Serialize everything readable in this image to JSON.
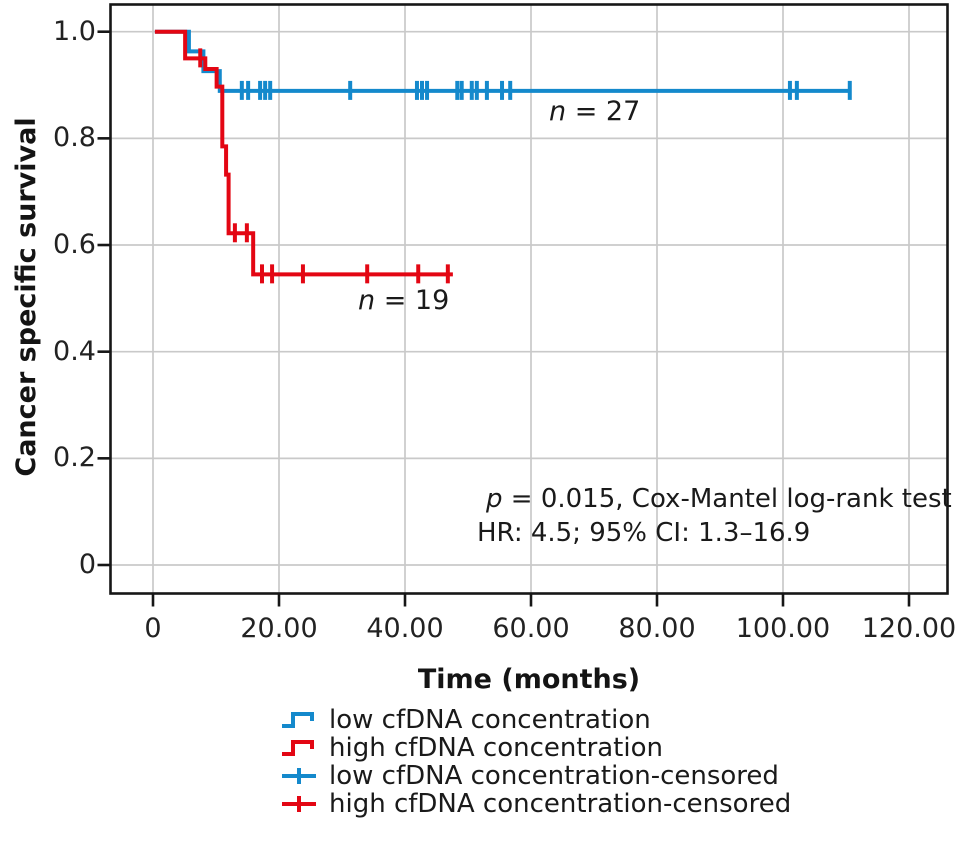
{
  "figure": {
    "background": "#ffffff"
  },
  "colors": {
    "low": "#1489cc",
    "high": "#e30613",
    "grid": "#c9c9c9",
    "frame": "#161616",
    "text": "#1a1a1a"
  },
  "axes": {
    "x_title": "Time (months)",
    "y_title": "Cancer specific survival"
  },
  "labels": {
    "n_low": {
      "italic": "n",
      "rest": " = 27"
    },
    "n_high": {
      "italic": "n",
      "rest": " = 19"
    },
    "stats1": {
      "italic": "p",
      "rest": " = 0.015, Cox-Mantel log-rank test"
    },
    "stats2": "HR: 4.5; 95% CI: 1.3–16.9"
  },
  "legend": {
    "items": [
      {
        "label": "low cfDNA concentration",
        "symbol": "step",
        "color": "#1489cc"
      },
      {
        "label": "high cfDNA concentration",
        "symbol": "step",
        "color": "#e30613"
      },
      {
        "label": "low cfDNA concentration-censored",
        "symbol": "plus",
        "color": "#1489cc"
      },
      {
        "label": "high cfDNA concentration-censored",
        "symbol": "plus",
        "color": "#e30613"
      }
    ]
  },
  "chart_data": {
    "type": "line",
    "subtype": "kaplan-meier-step-survival",
    "title": "",
    "xlabel": "Time (months)",
    "ylabel": "Cancer specific survival",
    "xlim": [
      -7,
      126
    ],
    "ylim": [
      -0.06,
      1.05
    ],
    "grid": true,
    "legend_position": "bottom",
    "x_ticks": {
      "values": [
        0,
        20,
        40,
        60,
        80,
        100,
        120
      ],
      "labels": [
        "0",
        "20.00",
        "40.00",
        "60.00",
        "80.00",
        "100.00",
        "120.00"
      ]
    },
    "y_ticks": {
      "values": [
        1.0,
        0.8,
        0.6,
        0.4,
        0.2,
        0
      ],
      "labels": [
        "1.0",
        "0.8",
        "0.6",
        "0.4",
        "0.2",
        "0"
      ]
    },
    "series": [
      {
        "name": "low cfDNA concentration",
        "n": 27,
        "color": "#1489cc",
        "step_points": [
          [
            0.3,
            1.0
          ],
          [
            5.7,
            1.0
          ],
          [
            5.7,
            0.963
          ],
          [
            8.0,
            0.963
          ],
          [
            8.0,
            0.926
          ],
          [
            10.6,
            0.926
          ],
          [
            10.6,
            0.889
          ],
          [
            110.6,
            0.889
          ]
        ],
        "censored": [
          [
            14.1,
            0.889
          ],
          [
            15.1,
            0.889
          ],
          [
            17.0,
            0.889
          ],
          [
            17.8,
            0.889
          ],
          [
            18.6,
            0.889
          ],
          [
            31.3,
            0.889
          ],
          [
            41.9,
            0.889
          ],
          [
            42.7,
            0.889
          ],
          [
            43.5,
            0.889
          ],
          [
            48.3,
            0.889
          ],
          [
            49.0,
            0.889
          ],
          [
            50.6,
            0.889
          ],
          [
            51.4,
            0.889
          ],
          [
            53.0,
            0.889
          ],
          [
            55.4,
            0.889
          ],
          [
            56.7,
            0.889
          ],
          [
            101.1,
            0.889
          ],
          [
            102.2,
            0.889
          ],
          [
            110.6,
            0.889
          ]
        ]
      },
      {
        "name": "high cfDNA concentration",
        "n": 19,
        "color": "#e30613",
        "step_points": [
          [
            0.3,
            1.0
          ],
          [
            5.1,
            1.0
          ],
          [
            5.1,
            0.95
          ],
          [
            8.3,
            0.95
          ],
          [
            8.3,
            0.93
          ],
          [
            10.1,
            0.93
          ],
          [
            10.1,
            0.897
          ],
          [
            11.0,
            0.897
          ],
          [
            11.0,
            0.785
          ],
          [
            11.6,
            0.785
          ],
          [
            11.6,
            0.732
          ],
          [
            12.0,
            0.732
          ],
          [
            12.0,
            0.622
          ],
          [
            15.9,
            0.622
          ],
          [
            15.9,
            0.545
          ],
          [
            47.6,
            0.545
          ]
        ],
        "censored": [
          [
            7.5,
            0.95
          ],
          [
            13.0,
            0.622
          ],
          [
            14.9,
            0.622
          ],
          [
            17.3,
            0.545
          ],
          [
            18.9,
            0.545
          ],
          [
            23.8,
            0.545
          ],
          [
            34.0,
            0.545
          ],
          [
            42.1,
            0.545
          ],
          [
            46.8,
            0.545
          ]
        ]
      }
    ],
    "annotations": [
      {
        "text": "n = 27",
        "near": "low curve"
      },
      {
        "text": "n = 19",
        "near": "high curve"
      },
      {
        "text": "p = 0.015, Cox-Mantel log-rank test"
      },
      {
        "text": "HR: 4.5; 95% CI: 1.3–16.9"
      }
    ]
  }
}
